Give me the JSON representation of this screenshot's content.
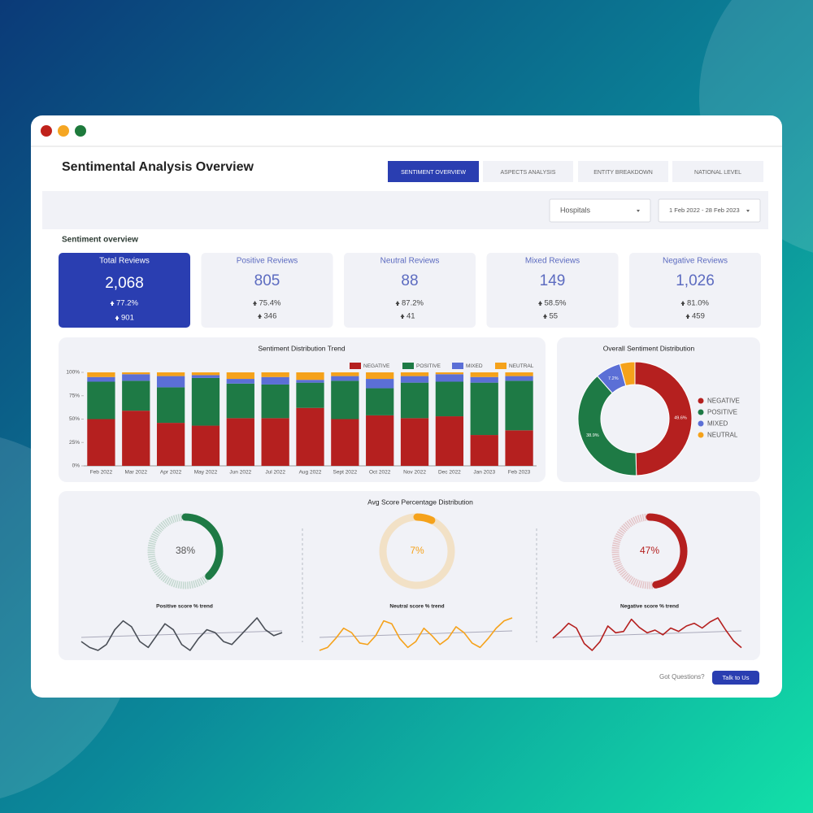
{
  "window": {
    "title": "Sentimental Analysis Overview",
    "tabs": [
      "SENTIMENT OVERVIEW",
      "ASPECTS ANALYSIS",
      "ENTITY BREAKDOWN",
      "NATIONAL LEVEL"
    ],
    "filters": [
      "Hospitals",
      "1 Feb 2022 - 28 Feb 2023"
    ],
    "section_title": "Sentiment overview",
    "kpis": [
      {
        "label": "Total Reviews",
        "value": "2,068",
        "pct": "77.2%",
        "count": "901"
      },
      {
        "label": "Positive Reviews",
        "value": "805",
        "pct": "75.4%",
        "count": "346"
      },
      {
        "label": "Neutral Reviews",
        "value": "88",
        "pct": "87.2%",
        "count": "41"
      },
      {
        "label": "Mixed Reviews",
        "value": "149",
        "pct": "58.5%",
        "count": "55"
      },
      {
        "label": "Negative Reviews",
        "value": "1,026",
        "pct": "81.0%",
        "count": "459"
      }
    ],
    "footer": {
      "question": "Got Questions?",
      "button": "Talk to Us"
    }
  },
  "chart_data": [
    {
      "type": "bar",
      "stacked": true,
      "title": "Sentiment Distribution Trend",
      "categories": [
        "Feb 2022",
        "Mar 2022",
        "Apr 2022",
        "May 2022",
        "Jun 2022",
        "Jul 2022",
        "Aug 2022",
        "Sept 2022",
        "Oct 2022",
        "Nov 2022",
        "Dec 2022",
        "Jan 2023",
        "Feb 2023"
      ],
      "series": [
        {
          "name": "NEGATIVE",
          "color": "#b5201f",
          "values": [
            50,
            59,
            46,
            43,
            51,
            51,
            62,
            50,
            54,
            51,
            53,
            33,
            38
          ]
        },
        {
          "name": "POSITIVE",
          "color": "#1e7a45",
          "values": [
            40,
            32,
            38,
            51,
            37,
            36,
            27,
            41,
            29,
            38,
            37,
            56,
            53
          ]
        },
        {
          "name": "MIXED",
          "color": "#5b6fd6",
          "values": [
            5,
            7,
            12,
            3,
            5,
            8,
            3,
            5,
            10,
            7,
            8,
            6,
            5
          ]
        },
        {
          "name": "NEUTRAL",
          "color": "#f5a21b",
          "values": [
            5,
            2,
            4,
            3,
            7,
            5,
            8,
            4,
            7,
            4,
            2,
            5,
            4
          ]
        }
      ],
      "ylim": [
        0,
        100
      ],
      "yticks": [
        {
          "value": 0,
          "label": "0%"
        },
        {
          "value": 25,
          "label": "25%"
        },
        {
          "value": 50,
          "label": "50%"
        },
        {
          "value": 75,
          "label": "75%"
        },
        {
          "value": 100,
          "label": "100%"
        }
      ],
      "legend": "top-right"
    },
    {
      "type": "pie",
      "donut": true,
      "title": "Overall Sentiment Distribution",
      "categories": [
        "NEGATIVE",
        "POSITIVE",
        "MIXED",
        "NEUTRAL"
      ],
      "values": [
        49.6,
        38.9,
        7.2,
        4.3
      ],
      "value_labels": [
        "49.6%",
        "38.9%",
        "7.2%",
        null
      ],
      "colors": [
        "#b5201f",
        "#1e7a45",
        "#5b6fd6",
        "#f5a21b"
      ],
      "legend": "right"
    },
    {
      "type": "gauge",
      "title": "Avg Score Percentage Distribution",
      "values": [
        38,
        7,
        47
      ],
      "value_labels": [
        "38%",
        "7%",
        "47%"
      ],
      "colors": [
        "#1e7a45",
        "#f5a21b",
        "#b5201f"
      ]
    },
    {
      "type": "line",
      "title": "Positive score % trend",
      "color": "#4a4f57",
      "values": [
        48,
        46,
        45,
        47,
        52,
        55,
        53,
        48,
        46,
        50,
        54,
        52,
        47,
        45,
        49,
        52,
        51,
        48,
        47,
        50,
        53,
        56,
        52,
        50,
        51
      ]
    },
    {
      "type": "line",
      "title": "Neutral score % trend",
      "color": "#f5a21b",
      "values": [
        40,
        42,
        48,
        55,
        52,
        45,
        44,
        50,
        60,
        58,
        48,
        42,
        46,
        55,
        50,
        44,
        48,
        56,
        52,
        45,
        42,
        48,
        55,
        60,
        62
      ]
    },
    {
      "type": "line",
      "title": "Negative score % trend",
      "color": "#b5201f",
      "values": [
        40,
        50,
        62,
        55,
        32,
        22,
        35,
        58,
        48,
        50,
        68,
        56,
        48,
        52,
        45,
        55,
        50,
        58,
        62,
        55,
        64,
        70,
        52,
        36,
        26
      ]
    }
  ]
}
